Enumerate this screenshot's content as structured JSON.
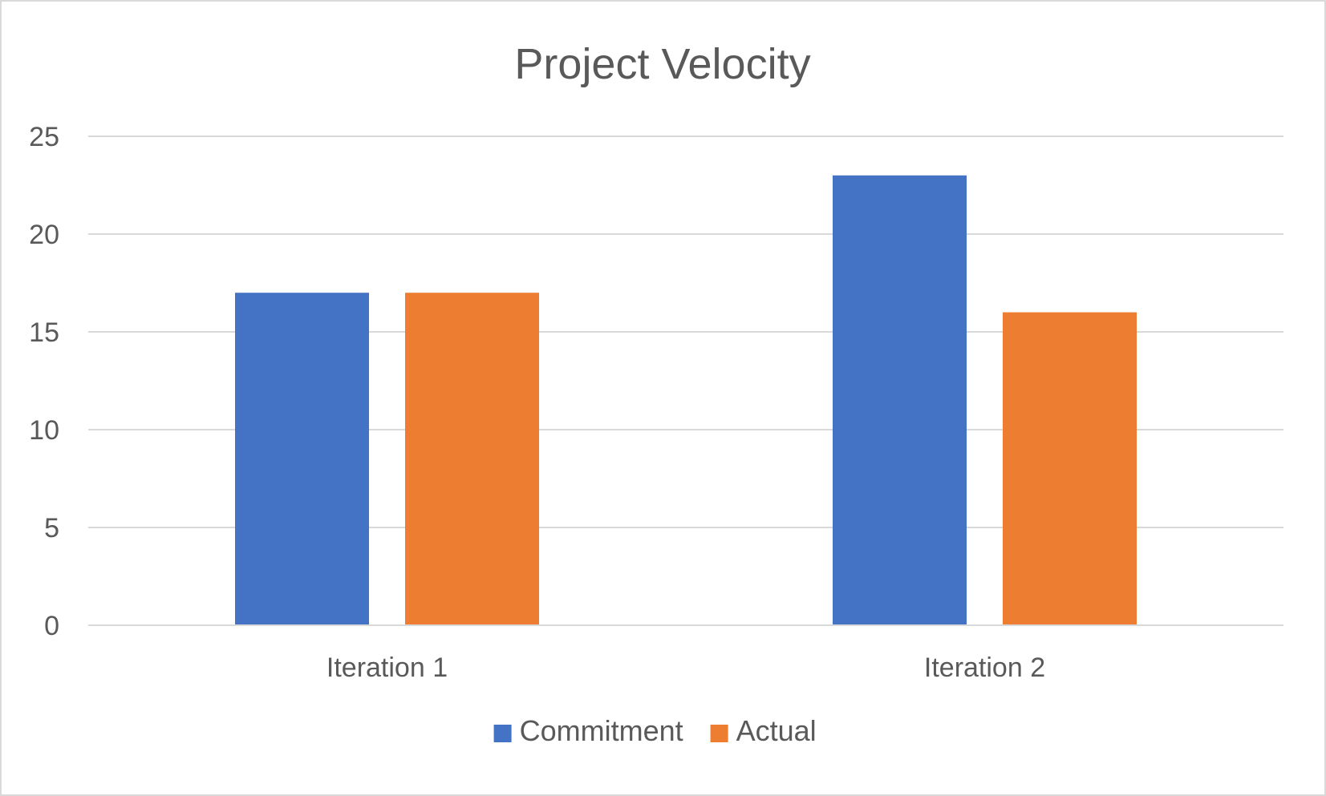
{
  "chart_data": {
    "type": "bar",
    "title": "Project Velocity",
    "xlabel": "",
    "ylabel": "",
    "categories": [
      "Iteration 1",
      "Iteration 2"
    ],
    "series": [
      {
        "name": "Commitment",
        "color": "#4472c4",
        "values": [
          17,
          23
        ]
      },
      {
        "name": "Actual",
        "color": "#ed7d31",
        "values": [
          17,
          16
        ]
      }
    ],
    "ylim": [
      0,
      25
    ],
    "yticks": [
      0,
      5,
      10,
      15,
      20,
      25
    ],
    "grid": true,
    "legend": "bottom"
  }
}
